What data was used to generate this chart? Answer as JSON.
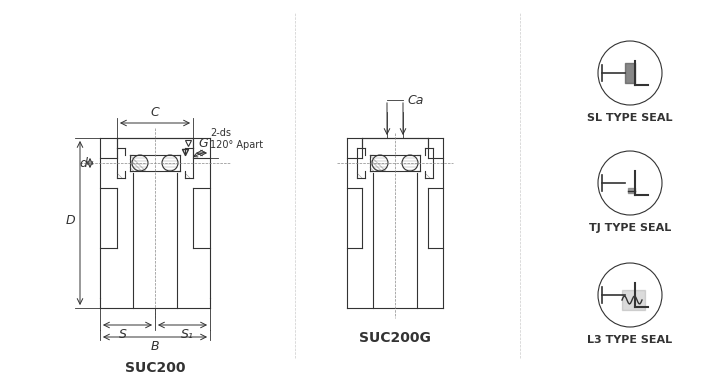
{
  "bg_color": "#ffffff",
  "line_color": "#333333",
  "title": "",
  "suc200_label": "SUC200",
  "suc200g_label": "SUC200G",
  "dim_labels": [
    "C",
    "G",
    "Ca",
    "D",
    "d",
    "S",
    "S1",
    "B",
    "2-ds\n120° Apart"
  ],
  "seal_labels": [
    "SL TYPE SEAL",
    "TJ TYPE SEAL",
    "L3 TYPE SEAL"
  ],
  "font_size_dim": 9,
  "font_size_label": 10,
  "font_size_seal": 8
}
